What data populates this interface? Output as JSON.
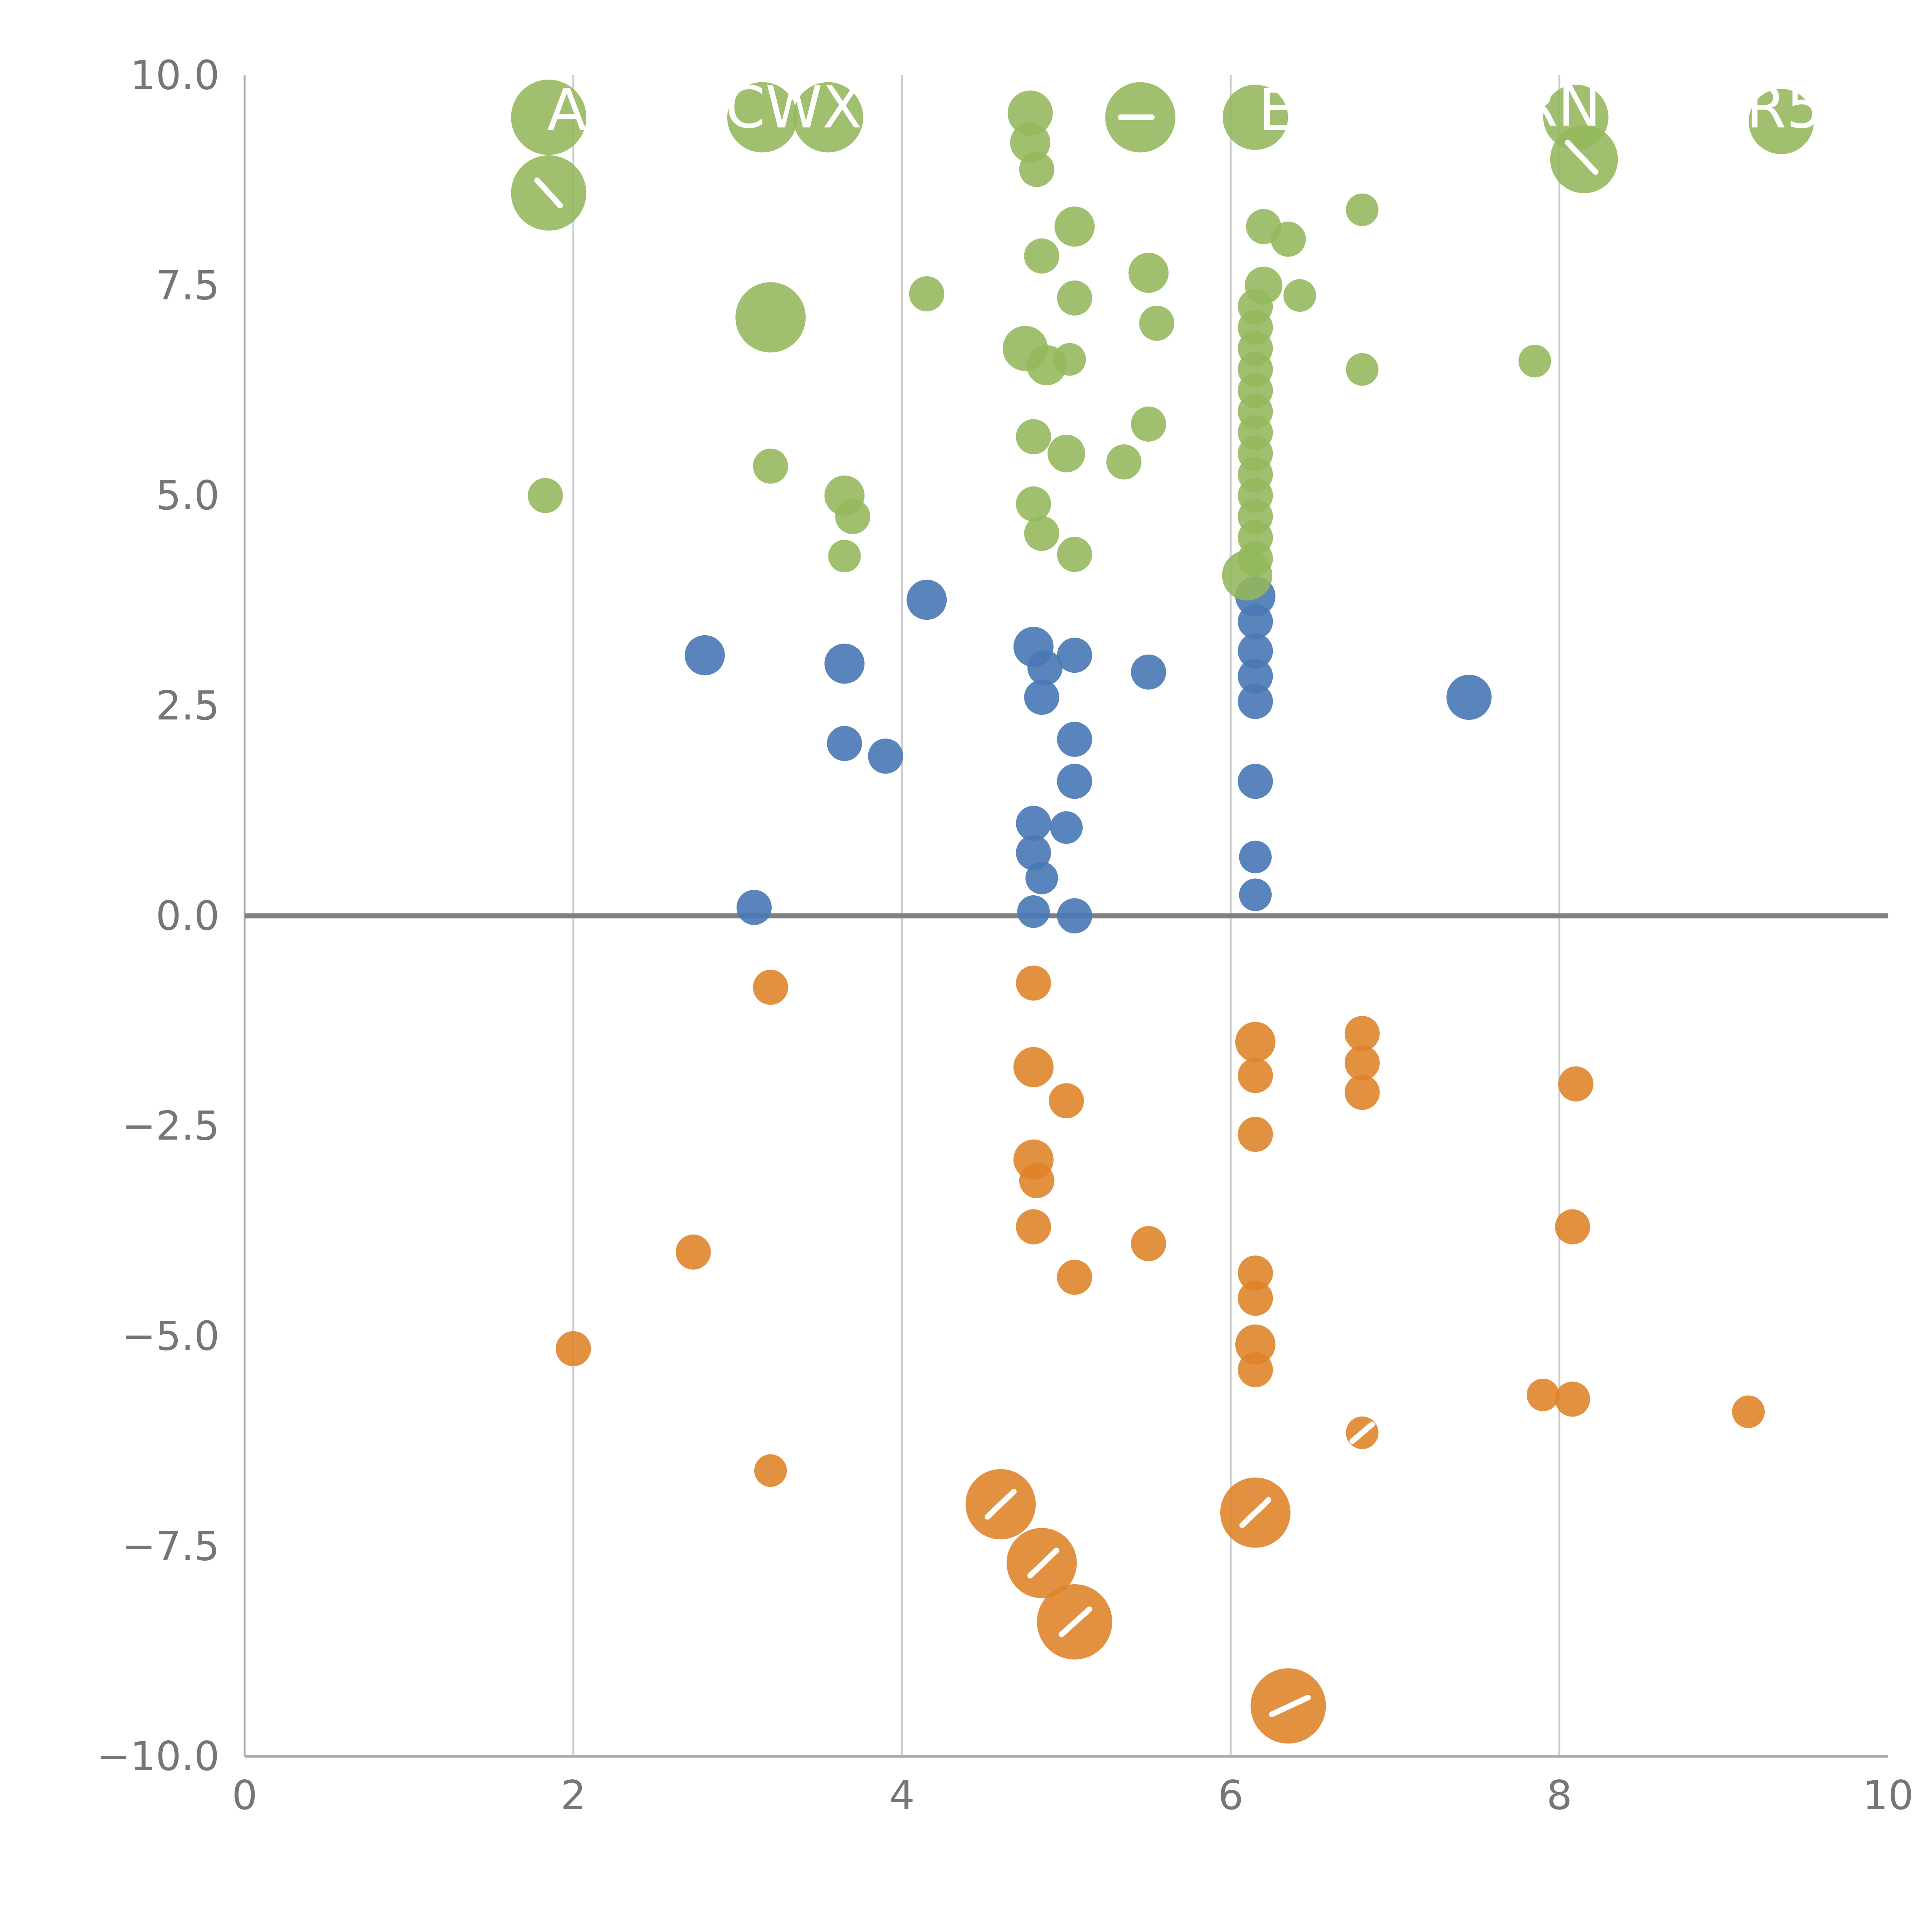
{
  "chart_data": {
    "type": "scatter",
    "title": "",
    "xlabel": "",
    "ylabel": "",
    "xlim": [
      0,
      10
    ],
    "ylim": [
      -10,
      10
    ],
    "grid": "vertical-only",
    "grid_x": [
      2,
      4,
      6,
      8
    ],
    "zero_line": true,
    "x_ticks": [
      {
        "value": 0,
        "label": "0"
      },
      {
        "value": 2,
        "label": "2"
      },
      {
        "value": 4,
        "label": "4"
      },
      {
        "value": 6,
        "label": "6"
      },
      {
        "value": 8,
        "label": "8"
      },
      {
        "value": 10,
        "label": "10"
      }
    ],
    "y_ticks": [
      {
        "value": 10,
        "label": "10.0"
      },
      {
        "value": 7.5,
        "label": "7.5"
      },
      {
        "value": 5,
        "label": "5.0"
      },
      {
        "value": 2.5,
        "label": "2.5"
      },
      {
        "value": 0,
        "label": "0.0"
      },
      {
        "value": -2.5,
        "label": "−2.5"
      },
      {
        "value": -5,
        "label": "−5.0"
      },
      {
        "value": -7.5,
        "label": "−7.5"
      },
      {
        "value": -10,
        "label": "−10.0"
      }
    ],
    "series": [
      {
        "name": "orange",
        "color": "#DE8227",
        "opacity": 0.88,
        "points": [
          [
            4.8,
            -0.8,
            14
          ],
          [
            3.2,
            -0.85,
            14
          ],
          [
            4.8,
            -1.8,
            16
          ],
          [
            5.0,
            -2.2,
            14
          ],
          [
            6.15,
            -1.5,
            16
          ],
          [
            6.15,
            -1.9,
            14
          ],
          [
            6.8,
            -1.4,
            14
          ],
          [
            6.8,
            -1.75,
            14
          ],
          [
            6.8,
            -2.1,
            14
          ],
          [
            8.1,
            -2.0,
            14
          ],
          [
            4.8,
            -2.9,
            16
          ],
          [
            4.82,
            -3.15,
            14
          ],
          [
            6.15,
            -2.6,
            14
          ],
          [
            4.8,
            -3.7,
            14
          ],
          [
            5.05,
            -4.3,
            14
          ],
          [
            5.5,
            -3.9,
            14
          ],
          [
            2.73,
            -4.0,
            14
          ],
          [
            6.15,
            -4.25,
            14
          ],
          [
            6.15,
            -4.55,
            14
          ],
          [
            8.08,
            -3.7,
            14
          ],
          [
            2.0,
            -5.15,
            14
          ],
          [
            6.15,
            -5.1,
            16
          ],
          [
            6.15,
            -5.4,
            14
          ],
          [
            7.9,
            -5.7,
            13
          ],
          [
            8.08,
            -5.75,
            14
          ],
          [
            9.15,
            -5.9,
            13
          ],
          [
            6.8,
            -6.15,
            13
          ],
          [
            3.2,
            -6.6,
            13
          ],
          [
            4.6,
            -7.0,
            28
          ],
          [
            4.85,
            -7.7,
            28
          ],
          [
            5.05,
            -8.4,
            30
          ],
          [
            6.15,
            -7.1,
            28
          ],
          [
            6.35,
            -9.4,
            30
          ]
        ]
      },
      {
        "name": "blue",
        "color": "#4878B5",
        "opacity": 0.9,
        "points": [
          [
            4.15,
            3.76,
            16
          ],
          [
            2.8,
            3.1,
            16
          ],
          [
            3.65,
            3.0,
            16
          ],
          [
            4.8,
            3.2,
            16
          ],
          [
            4.87,
            2.95,
            14
          ],
          [
            5.05,
            3.1,
            14
          ],
          [
            4.85,
            2.6,
            14
          ],
          [
            5.5,
            2.9,
            14
          ],
          [
            6.15,
            3.8,
            16
          ],
          [
            6.15,
            3.5,
            14
          ],
          [
            6.15,
            3.15,
            14
          ],
          [
            6.15,
            2.85,
            14
          ],
          [
            6.15,
            2.55,
            14
          ],
          [
            7.45,
            2.6,
            18
          ],
          [
            3.65,
            2.05,
            14
          ],
          [
            3.9,
            1.9,
            14
          ],
          [
            5.05,
            2.1,
            14
          ],
          [
            5.05,
            1.6,
            14
          ],
          [
            6.15,
            1.6,
            14
          ],
          [
            4.8,
            1.1,
            14
          ],
          [
            5.0,
            1.05,
            13
          ],
          [
            4.8,
            0.75,
            14
          ],
          [
            4.85,
            0.45,
            13
          ],
          [
            6.15,
            0.7,
            13
          ],
          [
            6.15,
            0.25,
            13
          ],
          [
            3.1,
            0.1,
            14
          ],
          [
            4.8,
            0.05,
            13
          ],
          [
            5.05,
            0.0,
            14
          ]
        ]
      },
      {
        "name": "green",
        "color": "#93B75B",
        "opacity": 0.88,
        "points": [
          [
            1.85,
            9.5,
            30
          ],
          [
            1.85,
            8.6,
            30
          ],
          [
            3.15,
            9.5,
            28
          ],
          [
            3.55,
            9.5,
            28
          ],
          [
            4.78,
            9.55,
            18
          ],
          [
            4.78,
            9.2,
            16
          ],
          [
            4.82,
            8.88,
            14
          ],
          [
            5.45,
            9.5,
            28
          ],
          [
            6.15,
            9.5,
            26
          ],
          [
            8.1,
            9.5,
            26
          ],
          [
            8.15,
            9.0,
            27
          ],
          [
            9.35,
            9.45,
            26
          ],
          [
            3.2,
            7.12,
            28
          ],
          [
            4.15,
            7.4,
            14
          ],
          [
            5.05,
            8.2,
            16
          ],
          [
            4.85,
            7.85,
            14
          ],
          [
            6.2,
            8.2,
            14
          ],
          [
            6.35,
            8.05,
            14
          ],
          [
            6.8,
            8.4,
            13
          ],
          [
            5.5,
            7.65,
            16
          ],
          [
            6.2,
            7.5,
            15
          ],
          [
            6.42,
            7.38,
            13
          ],
          [
            5.05,
            7.35,
            14
          ],
          [
            5.55,
            7.05,
            14
          ],
          [
            4.75,
            6.75,
            18
          ],
          [
            4.88,
            6.55,
            16
          ],
          [
            5.02,
            6.62,
            13
          ],
          [
            6.8,
            6.5,
            13
          ],
          [
            7.85,
            6.6,
            13
          ],
          [
            6.15,
            7.25,
            14
          ],
          [
            6.15,
            7.0,
            14
          ],
          [
            6.15,
            6.75,
            14
          ],
          [
            6.15,
            6.5,
            14
          ],
          [
            6.15,
            6.25,
            14
          ],
          [
            6.15,
            6.0,
            14
          ],
          [
            6.15,
            5.75,
            14
          ],
          [
            6.15,
            5.5,
            14
          ],
          [
            6.15,
            5.25,
            14
          ],
          [
            6.15,
            5.0,
            14
          ],
          [
            6.15,
            4.75,
            14
          ],
          [
            6.15,
            4.5,
            14
          ],
          [
            6.15,
            4.25,
            14
          ],
          [
            4.8,
            5.7,
            14
          ],
          [
            5.0,
            5.5,
            15
          ],
          [
            5.35,
            5.4,
            14
          ],
          [
            5.5,
            5.85,
            14
          ],
          [
            3.2,
            5.35,
            14
          ],
          [
            3.65,
            5.0,
            16
          ],
          [
            3.7,
            4.75,
            14
          ],
          [
            1.83,
            5.0,
            14
          ],
          [
            4.8,
            4.9,
            14
          ],
          [
            4.85,
            4.55,
            14
          ],
          [
            5.05,
            4.3,
            14
          ],
          [
            3.65,
            4.28,
            13
          ],
          [
            6.1,
            4.05,
            20
          ]
        ]
      }
    ],
    "annotations": [
      {
        "text": "A",
        "x": 1.96,
        "y": 9.35
      },
      {
        "text": "CWX",
        "x": 3.34,
        "y": 9.38
      },
      {
        "text": "E",
        "x": 6.28,
        "y": 9.35
      },
      {
        "text": "RN",
        "x": 8.0,
        "y": 9.4
      },
      {
        "text": "R5",
        "x": 9.37,
        "y": 9.38
      }
    ],
    "label_fragments": [
      [
        1.78,
        8.75,
        1.92,
        8.45
      ],
      [
        5.33,
        9.5,
        5.52,
        9.5
      ],
      [
        8.05,
        9.2,
        8.22,
        8.85
      ],
      [
        4.52,
        -7.15,
        4.68,
        -6.85
      ],
      [
        4.78,
        -7.85,
        4.94,
        -7.55
      ],
      [
        4.97,
        -8.55,
        5.14,
        -8.25
      ],
      [
        6.07,
        -7.25,
        6.23,
        -6.95
      ],
      [
        6.25,
        -9.5,
        6.47,
        -9.3
      ],
      [
        6.74,
        -6.25,
        6.86,
        -6.05
      ]
    ],
    "legend": "none"
  },
  "style": {
    "background": "#ffffff",
    "grid_color": "#cccccc",
    "axis_color": "#aaaaaa",
    "zero_line_color": "#808080",
    "tick_color": "#767676",
    "annotation_color": "#ffffff"
  }
}
